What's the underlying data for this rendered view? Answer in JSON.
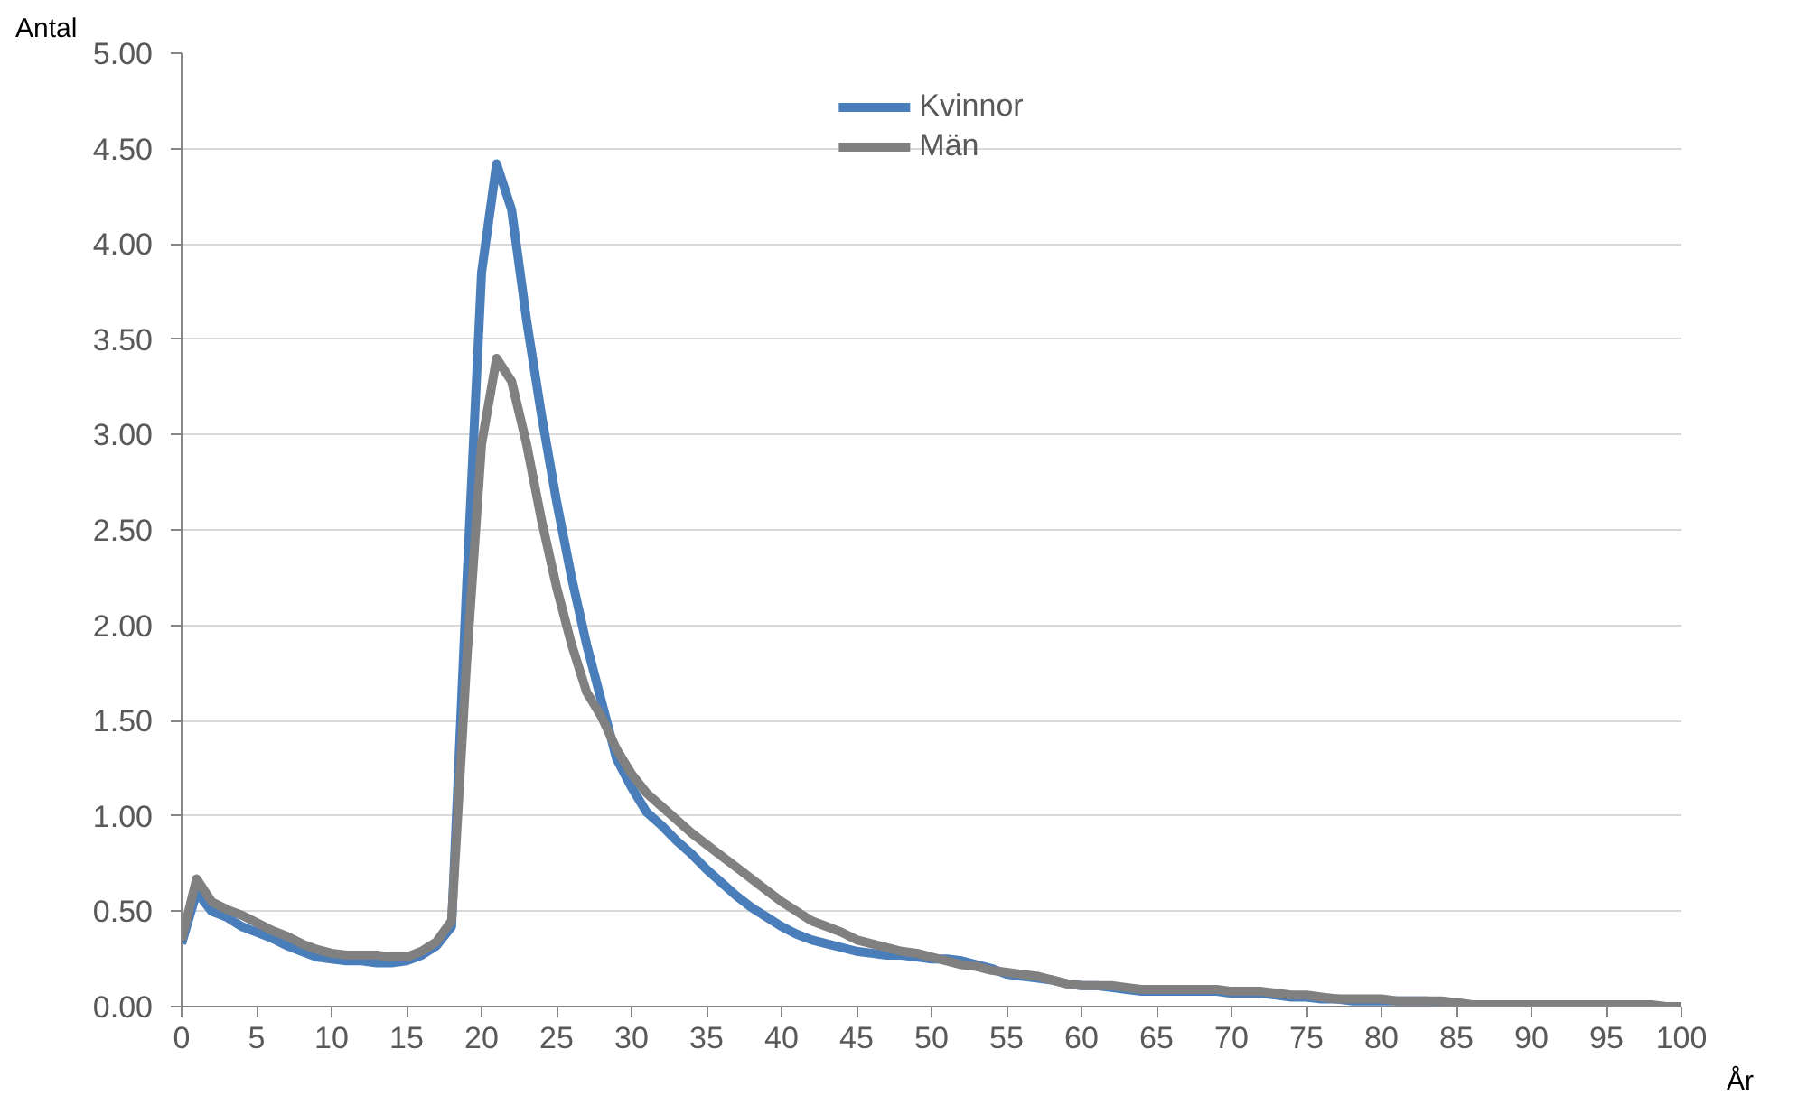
{
  "chart_data": {
    "type": "line",
    "xlabel": "År",
    "ylabel": "Antal",
    "x": [
      0,
      1,
      2,
      3,
      4,
      5,
      6,
      7,
      8,
      9,
      10,
      11,
      12,
      13,
      14,
      15,
      16,
      17,
      18,
      19,
      20,
      21,
      22,
      23,
      24,
      25,
      26,
      27,
      28,
      29,
      30,
      31,
      32,
      33,
      34,
      35,
      36,
      37,
      38,
      39,
      40,
      41,
      42,
      43,
      44,
      45,
      46,
      47,
      48,
      49,
      50,
      51,
      52,
      53,
      54,
      55,
      56,
      57,
      58,
      59,
      60,
      61,
      62,
      63,
      64,
      65,
      66,
      67,
      68,
      69,
      70,
      71,
      72,
      73,
      74,
      75,
      76,
      77,
      78,
      79,
      80,
      81,
      82,
      83,
      84,
      85,
      86,
      87,
      88,
      89,
      90,
      91,
      92,
      93,
      94,
      95,
      96,
      97,
      98,
      99,
      100
    ],
    "series": [
      {
        "name": "Kvinnor",
        "color": "#4a7ebb",
        "values": [
          0.33,
          0.6,
          0.5,
          0.47,
          0.42,
          0.39,
          0.36,
          0.32,
          0.29,
          0.26,
          0.25,
          0.24,
          0.24,
          0.23,
          0.23,
          0.24,
          0.27,
          0.32,
          0.42,
          2.2,
          3.85,
          4.42,
          4.18,
          3.6,
          3.1,
          2.65,
          2.25,
          1.9,
          1.6,
          1.3,
          1.15,
          1.02,
          0.95,
          0.87,
          0.8,
          0.72,
          0.65,
          0.58,
          0.52,
          0.47,
          0.42,
          0.38,
          0.35,
          0.33,
          0.31,
          0.29,
          0.28,
          0.27,
          0.27,
          0.26,
          0.25,
          0.25,
          0.24,
          0.22,
          0.2,
          0.17,
          0.16,
          0.15,
          0.14,
          0.12,
          0.11,
          0.11,
          0.1,
          0.09,
          0.08,
          0.08,
          0.08,
          0.08,
          0.08,
          0.08,
          0.07,
          0.07,
          0.07,
          0.06,
          0.05,
          0.05,
          0.04,
          0.04,
          0.03,
          0.03,
          0.03,
          0.03,
          0.03,
          0.03,
          0.02,
          0.02,
          0.01,
          0.01
        ],
        "x": [
          0,
          1,
          2,
          3,
          4,
          5,
          6,
          7,
          8,
          9,
          10,
          11,
          12,
          13,
          14,
          15,
          16,
          17,
          18,
          19,
          20,
          21,
          22,
          23,
          24,
          25,
          26,
          27,
          28,
          29,
          30,
          31,
          32,
          33,
          34,
          35,
          36,
          37,
          38,
          39,
          40,
          41,
          42,
          43,
          44,
          45,
          46,
          47,
          48,
          49,
          50,
          51,
          52,
          53,
          54,
          55,
          56,
          57,
          58,
          59,
          60,
          61,
          62,
          63,
          64,
          65,
          66,
          67,
          68,
          69,
          70,
          71,
          72,
          73,
          74,
          75,
          76,
          77,
          78,
          79,
          80,
          81,
          82,
          83,
          84,
          85,
          86,
          87
        ]
      },
      {
        "name": "Män",
        "color": "#808080",
        "values": [
          0.35,
          0.67,
          0.55,
          0.51,
          0.48,
          0.44,
          0.4,
          0.37,
          0.33,
          0.3,
          0.28,
          0.27,
          0.27,
          0.27,
          0.26,
          0.26,
          0.29,
          0.34,
          0.45,
          1.8,
          2.95,
          3.4,
          3.28,
          2.95,
          2.55,
          2.2,
          1.9,
          1.65,
          1.52,
          1.35,
          1.22,
          1.12,
          1.05,
          0.98,
          0.91,
          0.85,
          0.79,
          0.73,
          0.67,
          0.61,
          0.55,
          0.5,
          0.45,
          0.42,
          0.39,
          0.35,
          0.33,
          0.31,
          0.29,
          0.28,
          0.26,
          0.24,
          0.22,
          0.21,
          0.19,
          0.18,
          0.17,
          0.16,
          0.14,
          0.12,
          0.11,
          0.11,
          0.11,
          0.1,
          0.09,
          0.09,
          0.09,
          0.09,
          0.09,
          0.09,
          0.08,
          0.08,
          0.08,
          0.07,
          0.06,
          0.06,
          0.05,
          0.04,
          0.04,
          0.04,
          0.04,
          0.03,
          0.03,
          0.03,
          0.03,
          0.02,
          0.01,
          0.01,
          0.01,
          0.01,
          0.01,
          0.01,
          0.01,
          0.01,
          0.01,
          0.01,
          0.01,
          0.01,
          0.01,
          0.0,
          0.0
        ]
      }
    ],
    "xlim": [
      0,
      100
    ],
    "ylim": [
      0,
      5
    ],
    "xticks": [
      0,
      5,
      10,
      15,
      20,
      25,
      30,
      35,
      40,
      45,
      50,
      55,
      60,
      65,
      70,
      75,
      80,
      85,
      90,
      95,
      100
    ],
    "yticks": [
      {
        "value": 0,
        "label": "0.00"
      },
      {
        "value": 0.5,
        "label": "0.50"
      },
      {
        "value": 1,
        "label": "1.00"
      },
      {
        "value": 1.5,
        "label": "1.50"
      },
      {
        "value": 2,
        "label": "2.00"
      },
      {
        "value": 2.5,
        "label": "2.50"
      },
      {
        "value": 3,
        "label": "3.00"
      },
      {
        "value": 3.5,
        "label": "3.50"
      },
      {
        "value": 4,
        "label": "4.00"
      },
      {
        "value": 4.5,
        "label": "4.50"
      },
      {
        "value": 5,
        "label": "5.00"
      }
    ],
    "grid": "y",
    "legend": "top",
    "marker": "none",
    "line_style": "solid"
  }
}
